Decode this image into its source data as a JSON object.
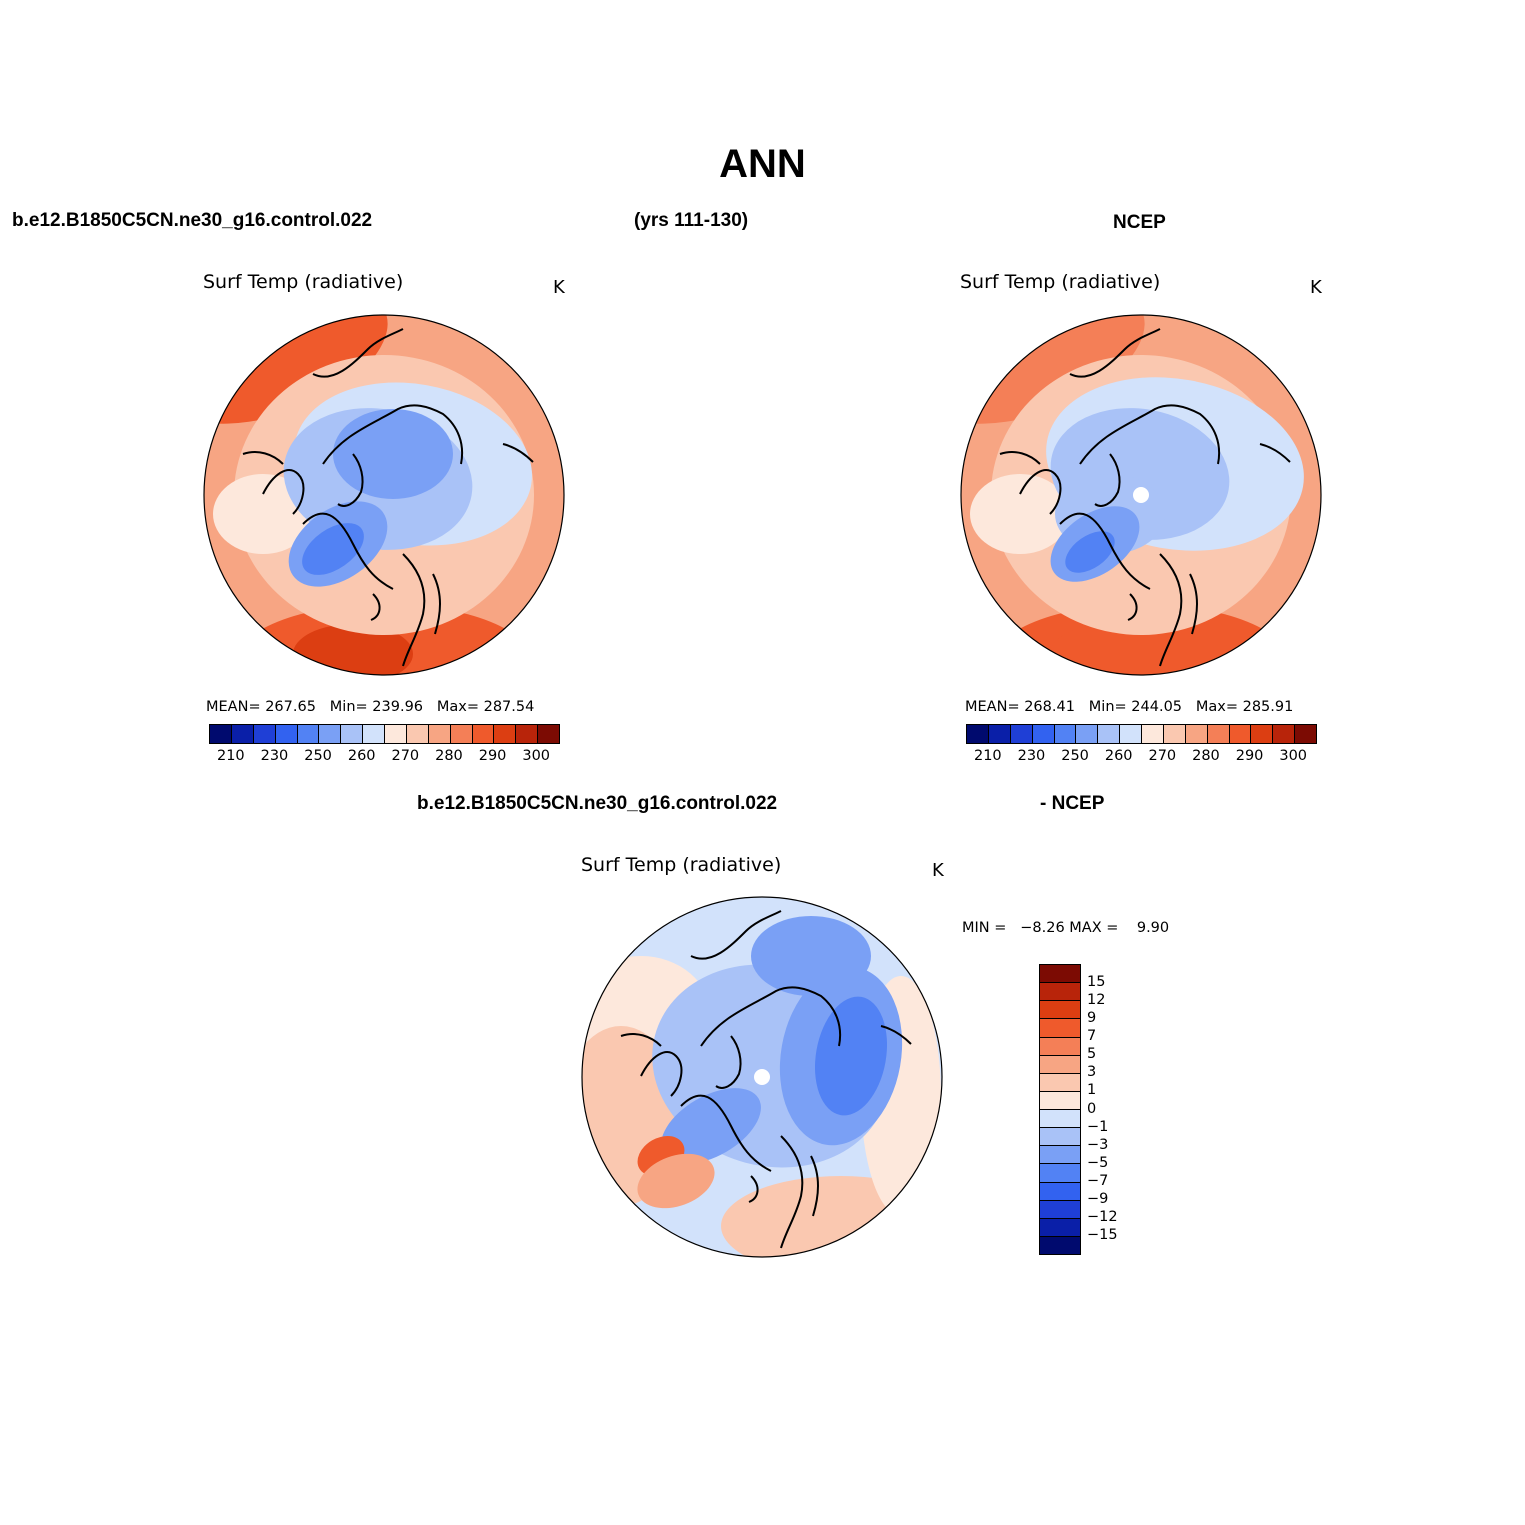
{
  "page": {
    "title": "ANN",
    "case_name": "b.e12.B1850C5CN.ne30_g16.control.022",
    "years": "(yrs 111-130)",
    "obs_name": "NCEP",
    "diff_case": "b.e12.B1850C5CN.ne30_g16.control.022",
    "diff_obs": "- NCEP"
  },
  "chart_data": [
    {
      "type": "heatmap",
      "projection": "north polar stereographic",
      "title": "Surf Temp (radiative)",
      "units": "K",
      "stats": {
        "mean_label": "MEAN=",
        "mean": "267.65",
        "min_label": "Min=",
        "min": "239.96",
        "max_label": "Max=",
        "max": "287.54"
      },
      "colorbar": {
        "orientation": "horizontal",
        "tick_labels": [
          "210",
          "230",
          "250",
          "260",
          "270",
          "280",
          "290",
          "300"
        ],
        "colors": [
          "#000a6e",
          "#0a1fa8",
          "#1f3fd6",
          "#3262f0",
          "#5282f4",
          "#7aa0f5",
          "#a9c2f7",
          "#d2e2fb",
          "#fde8dc",
          "#fac8b0",
          "#f7a583",
          "#f47f57",
          "#ef5a2c",
          "#dc3e12",
          "#b8240a",
          "#7c0b03"
        ]
      }
    },
    {
      "type": "heatmap",
      "projection": "north polar stereographic",
      "title": "Surf Temp (radiative)",
      "units": "K",
      "stats": {
        "mean_label": "MEAN=",
        "mean": "268.41",
        "min_label": "Min=",
        "min": "244.05",
        "max_label": "Max=",
        "max": "285.91"
      },
      "colorbar": {
        "orientation": "horizontal",
        "tick_labels": [
          "210",
          "230",
          "250",
          "260",
          "270",
          "280",
          "290",
          "300"
        ],
        "colors": [
          "#000a6e",
          "#0a1fa8",
          "#1f3fd6",
          "#3262f0",
          "#5282f4",
          "#7aa0f5",
          "#a9c2f7",
          "#d2e2fb",
          "#fde8dc",
          "#fac8b0",
          "#f7a583",
          "#f47f57",
          "#ef5a2c",
          "#dc3e12",
          "#b8240a",
          "#7c0b03"
        ]
      }
    },
    {
      "type": "heatmap",
      "projection": "north polar stereographic",
      "title": "Surf Temp (radiative)",
      "units": "K",
      "stats": {
        "min_label": "MIN =",
        "min": "−8.26",
        "max_label": "MAX =",
        "max": "9.90"
      },
      "colorbar": {
        "orientation": "vertical",
        "tick_labels": [
          "15",
          "12",
          "9",
          "7",
          "5",
          "3",
          "1",
          "0",
          "−1",
          "−3",
          "−5",
          "−7",
          "−9",
          "−12",
          "−15"
        ],
        "colors": [
          "#7c0b03",
          "#b8240a",
          "#dc3e12",
          "#ef5a2c",
          "#f47f57",
          "#f7a583",
          "#fac8b0",
          "#fde8dc",
          "#d2e2fb",
          "#a9c2f7",
          "#7aa0f5",
          "#5282f4",
          "#3262f0",
          "#1f3fd6",
          "#0a1fa8",
          "#000a6e"
        ]
      }
    }
  ]
}
